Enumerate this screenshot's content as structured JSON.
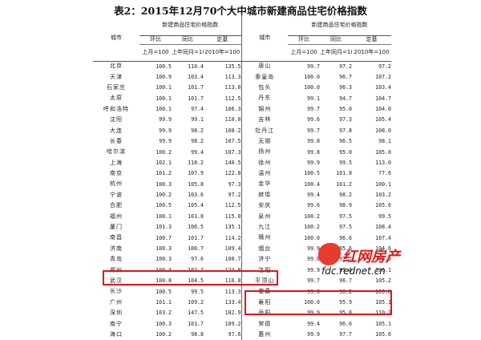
{
  "title": "表2：2015年12月70个大中城市新建商品住宅价格指数",
  "header": {
    "city": "城市",
    "group": "新建商品住宅价格指数",
    "col_mom": "环比",
    "col_yoy": "同比",
    "col_fixed": "定基",
    "base_mom": "上月=100",
    "base_yoy": "上年同月=100",
    "base_fixed": "2010年=100"
  },
  "rows": [
    {
      "l": {
        "city": "北京",
        "v": [
          "100.5",
          "110.4",
          "135.5"
        ]
      },
      "r": {
        "city": "唐山",
        "v": [
          "99.7",
          "97.2",
          "97.2"
        ]
      }
    },
    {
      "l": {
        "city": "天津",
        "v": [
          "100.9",
          "103.4",
          "113.3"
        ]
      },
      "r": {
        "city": "秦皇岛",
        "v": [
          "100.0",
          "96.7",
          "107.2"
        ]
      }
    },
    {
      "l": {
        "city": "石家庄",
        "v": [
          "100.1",
          "101.7",
          "113.0"
        ]
      },
      "r": {
        "city": "包头",
        "v": [
          "100.0",
          "96.3",
          "103.4"
        ]
      }
    },
    {
      "l": {
        "city": "太原",
        "v": [
          "100.1",
          "101.7",
          "112.5"
        ]
      },
      "r": {
        "city": "丹东",
        "v": [
          "99.1",
          "94.7",
          "104.7"
        ]
      }
    },
    {
      "l": {
        "city": "呼和浩特",
        "v": [
          "100.1",
          "97.4",
          "106.3"
        ]
      },
      "r": {
        "city": "锦州",
        "v": [
          "99.7",
          "95.0",
          "104.0"
        ]
      }
    },
    {
      "l": {
        "city": "沈阳",
        "v": [
          "99.9",
          "99.1",
          "110.0"
        ]
      },
      "r": {
        "city": "吉林",
        "v": [
          "99.6",
          "97.3",
          "105.4"
        ]
      }
    },
    {
      "l": {
        "city": "大连",
        "v": [
          "99.9",
          "98.2",
          "108.2"
        ]
      },
      "r": {
        "city": "牡丹江",
        "v": [
          "99.7",
          "97.8",
          "108.0"
        ]
      }
    },
    {
      "l": {
        "city": "长春",
        "v": [
          "99.9",
          "98.2",
          "107.5"
        ]
      },
      "r": {
        "city": "无锡",
        "v": [
          "99.8",
          "96.5",
          "98.1"
        ]
      }
    },
    {
      "l": {
        "city": "哈尔滨",
        "v": [
          "100.2",
          "99.4",
          "107.3"
        ]
      },
      "r": {
        "city": "扬州",
        "v": [
          "99.8",
          "95.0",
          "105.0"
        ]
      }
    },
    {
      "l": {
        "city": "上海",
        "v": [
          "102.1",
          "118.2",
          "140.5"
        ]
      },
      "r": {
        "city": "徐州",
        "v": [
          "99.9",
          "99.5",
          "113.0"
        ]
      }
    },
    {
      "l": {
        "city": "南京",
        "v": [
          "101.2",
          "107.9",
          "122.8"
        ]
      },
      "r": {
        "city": "温州",
        "v": [
          "100.5",
          "101.8",
          "77.6"
        ]
      }
    },
    {
      "l": {
        "city": "杭州",
        "v": [
          "100.3",
          "105.8",
          "97.3"
        ]
      },
      "r": {
        "city": "金华",
        "v": [
          "100.4",
          "101.2",
          "100.1"
        ]
      }
    },
    {
      "l": {
        "city": "宁波",
        "v": [
          "100.2",
          "103.6",
          "97.2"
        ]
      },
      "r": {
        "city": "蚌埠",
        "v": [
          "99.4",
          "98.2",
          "103.2"
        ]
      }
    },
    {
      "l": {
        "city": "合肥",
        "v": [
          "100.5",
          "105.4",
          "112.5"
        ]
      },
      "r": {
        "city": "安庆",
        "v": [
          "99.6",
          "98.9",
          "105.6"
        ]
      }
    },
    {
      "l": {
        "city": "福州",
        "v": [
          "100.1",
          "101.8",
          "115.0"
        ]
      },
      "r": {
        "city": "泉州",
        "v": [
          "100.2",
          "97.5",
          "99.5"
        ]
      }
    },
    {
      "l": {
        "city": "厦门",
        "v": [
          "101.3",
          "106.5",
          "135.1"
        ]
      },
      "r": {
        "city": "九江",
        "v": [
          "100.2",
          "97.5",
          "108.4"
        ]
      }
    },
    {
      "l": {
        "city": "南昌",
        "v": [
          "100.7",
          "101.7",
          "114.2"
        ]
      },
      "r": {
        "city": "赣州",
        "v": [
          "100.0",
          "96.6",
          "107.4"
        ]
      }
    },
    {
      "l": {
        "city": "济南",
        "v": [
          "100.3",
          "100.7",
          "109.4"
        ]
      },
      "r": {
        "city": "烟台",
        "v": [
          "99.9",
          "95.6",
          "104.6"
        ]
      }
    },
    {
      "l": {
        "city": "青岛",
        "v": [
          "100.3",
          "97.6",
          "100.7"
        ]
      },
      "r": {
        "city": "济宁",
        "v": [
          "99.6",
          "97.7",
          "106.0"
        ]
      }
    },
    {
      "l": {
        "city": "郑州",
        "v": [
          "100.4",
          "102.7",
          "124.0"
        ]
      },
      "r": {
        "city": "洛阳",
        "v": [
          "99.9",
          "97.6",
          "106.1"
        ]
      }
    },
    {
      "l": {
        "city": "武汉",
        "v": [
          "100.8",
          "104.5",
          "116.8"
        ]
      },
      "r": {
        "city": "平顶山",
        "v": [
          "99.7",
          "96.7",
          "105.2"
        ]
      }
    },
    {
      "l": {
        "city": "长沙",
        "v": [
          "100.5",
          "99.5",
          "113.3"
        ]
      },
      "r": {
        "city": "宜昌",
        "v": [
          "99.6",
          "96.2",
          "103.8"
        ]
      }
    },
    {
      "l": {
        "city": "广州",
        "v": [
          "101.1",
          "109.2",
          "133.4"
        ]
      },
      "r": {
        "city": "襄阳",
        "v": [
          "100.0",
          "95.9",
          "105.1"
        ]
      }
    },
    {
      "l": {
        "city": "深圳",
        "v": [
          "103.2",
          "147.5",
          "182.9"
        ]
      },
      "r": {
        "city": "岳阳",
        "v": [
          "99.9",
          "95.8",
          "110.2"
        ]
      }
    },
    {
      "l": {
        "city": "南宁",
        "v": [
          "100.3",
          "101.7",
          "109.2"
        ]
      },
      "r": {
        "city": "常德",
        "v": [
          "99.4",
          "96.6",
          "105.1"
        ]
      }
    },
    {
      "l": {
        "city": "海口",
        "v": [
          "100.2",
          "98.8",
          "97.6"
        ]
      },
      "r": {
        "city": "惠州",
        "v": [
          "99.9",
          "97.7",
          "105.6"
        ]
      }
    }
  ],
  "watermark": {
    "brand": "红网房产",
    "url": "fdc.rednet.cn"
  },
  "colors": {
    "highlight": "#e0141b",
    "watermark_red": "#e01818"
  }
}
